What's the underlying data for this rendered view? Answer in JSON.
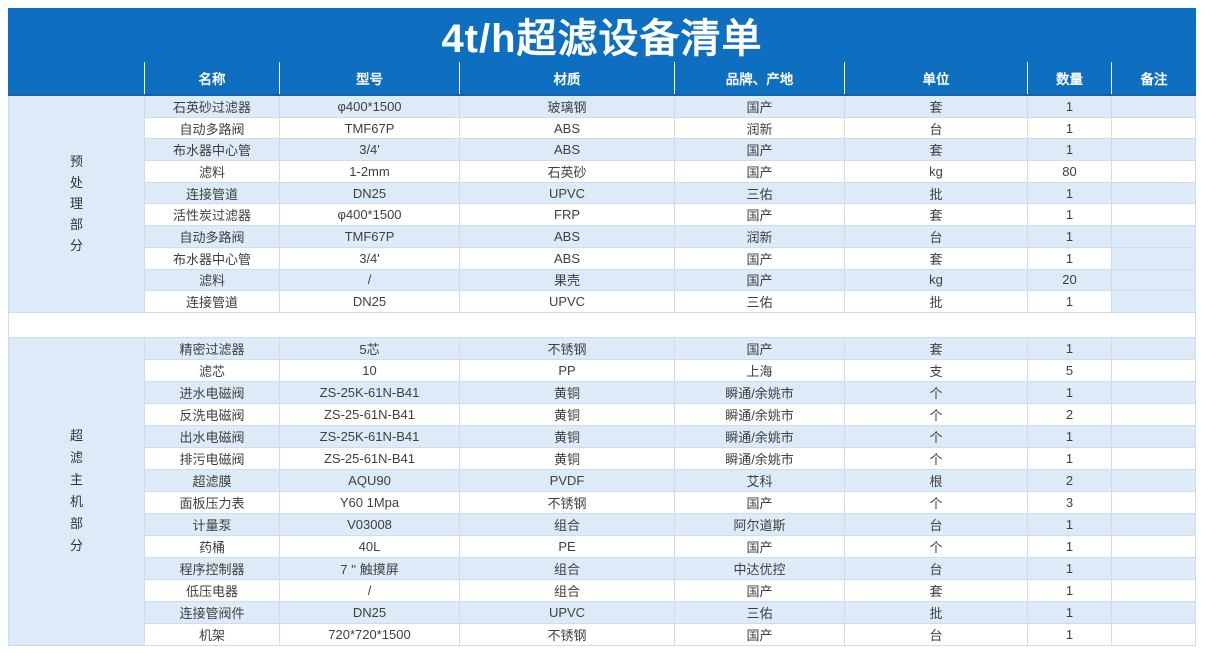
{
  "title": "4t/h超滤设备清单",
  "header": {
    "columns": [
      "",
      "名称",
      "型号",
      "材质",
      "品牌、产地",
      "单位",
      "数量",
      "备注"
    ]
  },
  "sections": [
    {
      "label": "预处理部分",
      "remark_highlight_rows": [
        8,
        10
      ],
      "rows": [
        [
          "石英砂过滤器",
          "φ400*1500",
          "玻璃钢",
          "国产",
          "套",
          "1",
          ""
        ],
        [
          "自动多路阀",
          "TMF67P",
          "ABS",
          "润新",
          "台",
          "1",
          ""
        ],
        [
          "布水器中心管",
          "3/4'",
          "ABS",
          "国产",
          "套",
          "1",
          ""
        ],
        [
          "滤料",
          "1-2mm",
          "石英砂",
          "国产",
          "kg",
          "80",
          ""
        ],
        [
          "连接管道",
          "DN25",
          "UPVC",
          "三佑",
          "批",
          "1",
          ""
        ],
        [
          "活性炭过滤器",
          "φ400*1500",
          "FRP",
          "国产",
          "套",
          "1",
          ""
        ],
        [
          "自动多路阀",
          "TMF67P",
          "ABS",
          "润新",
          "台",
          "1",
          ""
        ],
        [
          "布水器中心管",
          "3/4'",
          "ABS",
          "国产",
          "套",
          "1",
          ""
        ],
        [
          "滤料",
          "/",
          "果壳",
          "国产",
          "kg",
          "20",
          ""
        ],
        [
          "连接管道",
          "DN25",
          "UPVC",
          "三佑",
          "批",
          "1",
          ""
        ]
      ]
    },
    {
      "label": "超滤主机部分",
      "remark_highlight_rows": [],
      "rows": [
        [
          "精密过滤器",
          "5芯",
          "不锈钢",
          "国产",
          "套",
          "1",
          ""
        ],
        [
          "滤芯",
          "10",
          "PP",
          "上海",
          "支",
          "5",
          ""
        ],
        [
          "进水电磁阀",
          "ZS-25K-61N-B41",
          "黄铜",
          "瞬通/余姚市",
          "个",
          "1",
          ""
        ],
        [
          "反洗电磁阀",
          "ZS-25-61N-B41",
          "黄铜",
          "瞬通/余姚市",
          "个",
          "2",
          ""
        ],
        [
          "出水电磁阀",
          "ZS-25K-61N-B41",
          "黄铜",
          "瞬通/余姚市",
          "个",
          "1",
          ""
        ],
        [
          "排污电磁阀",
          "ZS-25-61N-B41",
          "黄铜",
          "瞬通/余姚市",
          "个",
          "1",
          ""
        ],
        [
          "超滤膜",
          "AQU90",
          "PVDF",
          "艾科",
          "根",
          "2",
          ""
        ],
        [
          "面板压力表",
          "Y60 1Mpa",
          "不锈钢",
          "国产",
          "个",
          "3",
          ""
        ],
        [
          "计量泵",
          "V03008",
          "组合",
          "阿尔道斯",
          "台",
          "1",
          ""
        ],
        [
          "药桶",
          "40L",
          "PE",
          "国产",
          "个",
          "1",
          ""
        ],
        [
          "程序控制器",
          "7 '' 触摸屏",
          "组合",
          "中达优控",
          "台",
          "1",
          ""
        ],
        [
          "低压电器",
          "/",
          "组合",
          "国产",
          "套",
          "1",
          ""
        ],
        [
          "连接管阀件",
          "DN25",
          "UPVC",
          "三佑",
          "批",
          "1",
          ""
        ],
        [
          "机架",
          "720*720*1500",
          "不锈钢",
          "国产",
          "台",
          "1",
          ""
        ]
      ]
    }
  ],
  "colors": {
    "brand_blue": "#0e6fc1",
    "header_divider": "#1563ab",
    "row_alt_fill": "#dcebf7",
    "gridline": "#ccddef",
    "body_text": "#3f3f3f"
  }
}
